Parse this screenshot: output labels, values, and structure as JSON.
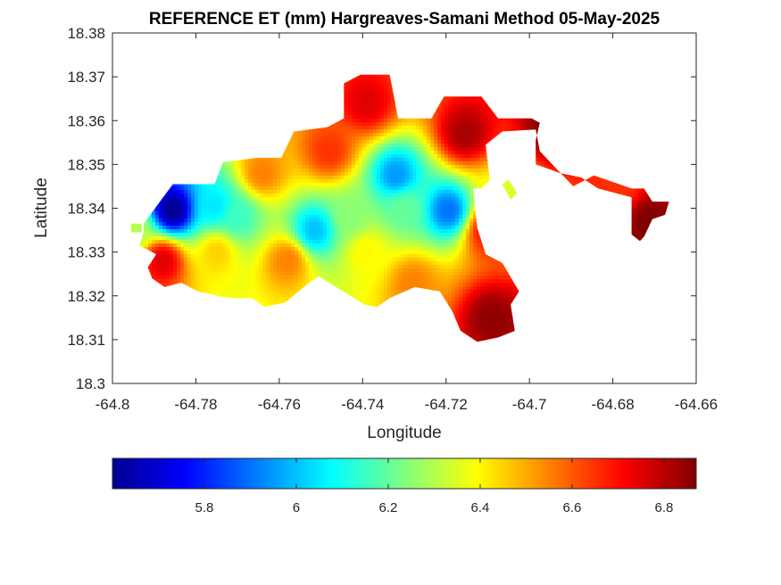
{
  "chart_data": {
    "type": "heatmap",
    "title": "REFERENCE ET (mm) Hargreaves-Samani Method  05-May-2025",
    "xlabel": "Longitude",
    "ylabel": "Latitude",
    "xlim": [
      -64.8,
      -64.66
    ],
    "ylim": [
      18.3,
      18.38
    ],
    "x_ticks": [
      "-64.8",
      "-64.78",
      "-64.76",
      "-64.74",
      "-64.72",
      "-64.7",
      "-64.68",
      "-64.66"
    ],
    "y_ticks": [
      "18.3",
      "18.31",
      "18.32",
      "18.33",
      "18.34",
      "18.35",
      "18.36",
      "18.37",
      "18.38"
    ],
    "colormap": "jet",
    "colorbar": {
      "range": [
        5.6,
        6.87
      ],
      "ticks": [
        "5.8",
        "6",
        "6.2",
        "6.4",
        "6.6",
        "6.8"
      ],
      "placement": "bottom"
    },
    "grid": false,
    "field": {
      "boundary": [
        [
          -64.7925,
          18.3365
        ],
        [
          -64.7855,
          18.3455
        ],
        [
          -64.7755,
          18.3455
        ],
        [
          -64.7735,
          18.3505
        ],
        [
          -64.7655,
          18.3515
        ],
        [
          -64.7595,
          18.3515
        ],
        [
          -64.7565,
          18.3575
        ],
        [
          -64.7485,
          18.3585
        ],
        [
          -64.7445,
          18.3605
        ],
        [
          -64.7445,
          18.3685
        ],
        [
          -64.7405,
          18.3705
        ],
        [
          -64.7335,
          18.3705
        ],
        [
          -64.7315,
          18.3605
        ],
        [
          -64.7235,
          18.3605
        ],
        [
          -64.7205,
          18.3655
        ],
        [
          -64.7115,
          18.3655
        ],
        [
          -64.7075,
          18.3605
        ],
        [
          -64.6995,
          18.3605
        ],
        [
          -64.6975,
          18.3595
        ],
        [
          -64.6985,
          18.3555
        ],
        [
          -64.6985,
          18.35
        ],
        [
          -64.6925,
          18.348
        ],
        [
          -64.6895,
          18.345
        ],
        [
          -64.6845,
          18.3475
        ],
        [
          -64.6755,
          18.3445
        ],
        [
          -64.6725,
          18.3445
        ],
        [
          -64.6705,
          18.3415
        ],
        [
          -64.6665,
          18.3415
        ],
        [
          -64.6675,
          18.3385
        ],
        [
          -64.6705,
          18.3375
        ],
        [
          -64.6725,
          18.3335
        ],
        [
          -64.6735,
          18.3325
        ],
        [
          -64.6755,
          18.334
        ],
        [
          -64.6755,
          18.3425
        ],
        [
          -64.6835,
          18.3445
        ],
        [
          -64.6875,
          18.347
        ],
        [
          -64.6925,
          18.348
        ],
        [
          -64.6975,
          18.353
        ],
        [
          -64.6985,
          18.358
        ],
        [
          -64.7065,
          18.3575
        ],
        [
          -64.7105,
          18.3545
        ],
        [
          -64.7095,
          18.3465
        ],
        [
          -64.7115,
          18.3445
        ],
        [
          -64.7135,
          18.3445
        ],
        [
          -64.7125,
          18.3355
        ],
        [
          -64.7105,
          18.3295
        ],
        [
          -64.7065,
          18.3275
        ],
        [
          -64.7025,
          18.321
        ],
        [
          -64.7045,
          18.318
        ],
        [
          -64.7035,
          18.312
        ],
        [
          -64.7075,
          18.3105
        ],
        [
          -64.7125,
          18.3095
        ],
        [
          -64.7165,
          18.312
        ],
        [
          -64.7185,
          18.3165
        ],
        [
          -64.7215,
          18.321
        ],
        [
          -64.7275,
          18.322
        ],
        [
          -64.7335,
          18.3195
        ],
        [
          -64.7365,
          18.3175
        ],
        [
          -64.7395,
          18.318
        ],
        [
          -64.7455,
          18.3215
        ],
        [
          -64.7505,
          18.3245
        ],
        [
          -64.7535,
          18.3225
        ],
        [
          -64.7585,
          18.3185
        ],
        [
          -64.7635,
          18.3175
        ],
        [
          -64.7665,
          18.3195
        ],
        [
          -64.7715,
          18.3195
        ],
        [
          -64.7745,
          18.32
        ],
        [
          -64.7795,
          18.321
        ],
        [
          -64.7835,
          18.323
        ],
        [
          -64.7875,
          18.322
        ],
        [
          -64.7905,
          18.324
        ],
        [
          -64.7915,
          18.3265
        ],
        [
          -64.7895,
          18.3295
        ],
        [
          -64.7935,
          18.3315
        ],
        [
          -64.7925,
          18.3345
        ]
      ],
      "extra_patches": [
        [
          [
            -64.7065,
            18.3455
          ],
          [
            -64.7045,
            18.342
          ],
          [
            -64.703,
            18.3435
          ],
          [
            -64.705,
            18.3465
          ]
        ],
        [
          [
            -64.7955,
            18.3365
          ],
          [
            -64.793,
            18.3365
          ],
          [
            -64.793,
            18.3345
          ],
          [
            -64.7955,
            18.3345
          ]
        ]
      ],
      "centers": [
        {
          "lon": -64.7855,
          "lat": 18.3395,
          "value": 5.62
        },
        {
          "lon": -64.7755,
          "lat": 18.3405,
          "value": 6.05
        },
        {
          "lon": -64.77,
          "lat": 18.338,
          "value": 6.15
        },
        {
          "lon": -64.7515,
          "lat": 18.335,
          "value": 6.0
        },
        {
          "lon": -64.743,
          "lat": 18.338,
          "value": 6.25
        },
        {
          "lon": -64.732,
          "lat": 18.3475,
          "value": 5.95
        },
        {
          "lon": -64.7195,
          "lat": 18.3395,
          "value": 5.9
        },
        {
          "lon": -64.739,
          "lat": 18.33,
          "value": 6.4
        },
        {
          "lon": -64.758,
          "lat": 18.328,
          "value": 6.55
        },
        {
          "lon": -64.775,
          "lat": 18.33,
          "value": 6.45
        },
        {
          "lon": -64.788,
          "lat": 18.328,
          "value": 6.75
        },
        {
          "lon": -64.795,
          "lat": 18.335,
          "value": 6.3
        },
        {
          "lon": -64.739,
          "lat": 18.364,
          "value": 6.75
        },
        {
          "lon": -64.748,
          "lat": 18.353,
          "value": 6.65
        },
        {
          "lon": -64.764,
          "lat": 18.348,
          "value": 6.55
        },
        {
          "lon": -64.7155,
          "lat": 18.357,
          "value": 6.82
        },
        {
          "lon": -64.71,
          "lat": 18.335,
          "value": 6.7
        },
        {
          "lon": -64.709,
          "lat": 18.315,
          "value": 6.85
        },
        {
          "lon": -64.705,
          "lat": 18.344,
          "value": 6.35
        },
        {
          "lon": -64.695,
          "lat": 18.358,
          "value": 6.87
        },
        {
          "lon": -64.6715,
          "lat": 18.337,
          "value": 6.87
        },
        {
          "lon": -64.678,
          "lat": 18.345,
          "value": 6.65
        },
        {
          "lon": -64.728,
          "lat": 18.323,
          "value": 6.55
        },
        {
          "lon": -64.73,
          "lat": 18.34,
          "value": 6.2
        }
      ]
    }
  }
}
